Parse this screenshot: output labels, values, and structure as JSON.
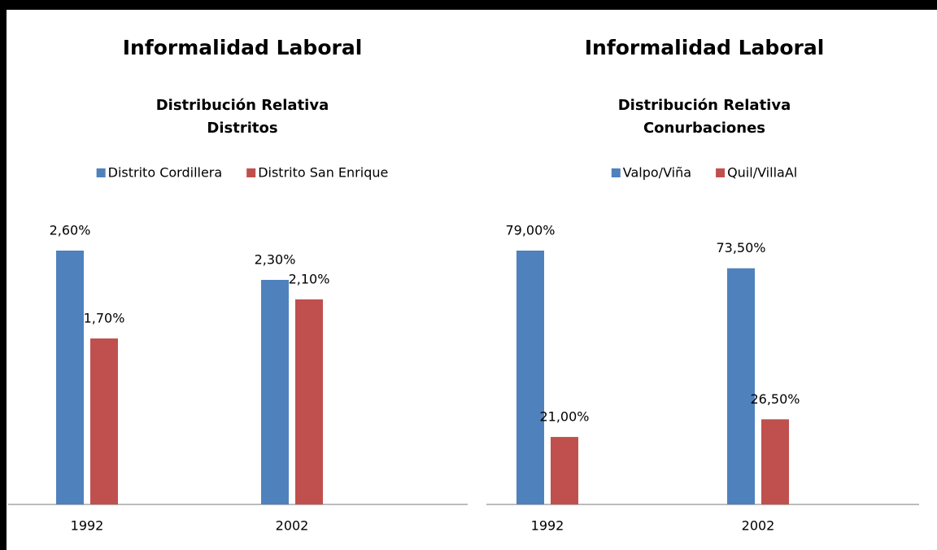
{
  "chart_data": [
    {
      "type": "bar",
      "title": "Informalidad Laboral",
      "subtitle": [
        "Distribución Relativa",
        "Distritos"
      ],
      "categories": [
        "1992",
        "2002"
      ],
      "series": [
        {
          "name": "Distrito Cordillera",
          "color": "#4f81bd",
          "values": [
            2.6,
            2.3
          ],
          "value_labels": [
            "2,60%",
            "2,30%"
          ]
        },
        {
          "name": "Distrito San Enrique",
          "color": "#c0504d",
          "values": [
            1.7,
            2.1
          ],
          "value_labels": [
            "1,70%",
            "2,10%"
          ]
        }
      ],
      "legend": "top"
    },
    {
      "type": "bar",
      "title": "Informalidad Laboral",
      "subtitle": [
        "Distribución Relativa",
        "Conurbaciones"
      ],
      "categories": [
        "1992",
        "2002"
      ],
      "series": [
        {
          "name": "Valpo/Viña",
          "color": "#4f81bd",
          "values": [
            79,
            73.5
          ],
          "value_labels": [
            "79,00%",
            "73,50%"
          ]
        },
        {
          "name": "Quil/VillaAl",
          "color": "#c0504d",
          "values": [
            21,
            26.5
          ],
          "value_labels": [
            "21,00%",
            "26,50%"
          ]
        }
      ],
      "legend": "top"
    }
  ]
}
